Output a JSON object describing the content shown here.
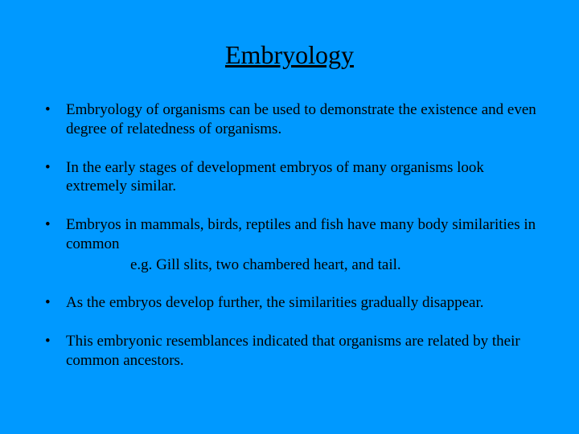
{
  "background_color": "#0099ff",
  "text_color": "#000000",
  "font_family": "Times New Roman",
  "title": {
    "text": "Embryology",
    "fontsize": 32,
    "underline": true
  },
  "bullets": [
    {
      "text": " Embryology of organisms can be used to demonstrate the existence and even degree of relatedness of organisms."
    },
    {
      "text": " In the early stages of development embryos of many organisms look extremely similar."
    },
    {
      "text": "Embryos in mammals, birds, reptiles and fish have many body similarities in common",
      "sub": "e.g. Gill slits, two chambered heart, and tail."
    },
    {
      "text": " As the embryos develop further, the similarities gradually disappear."
    },
    {
      "text": " This embryonic resemblances indicated that organisms are related by their common ancestors."
    }
  ]
}
